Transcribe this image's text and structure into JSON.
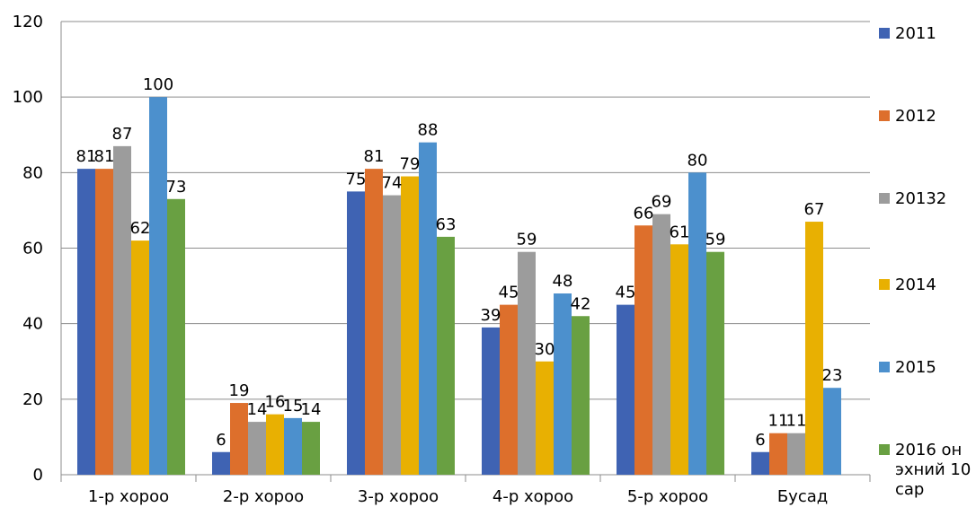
{
  "chart_data": {
    "type": "bar",
    "title": "",
    "xlabel": "",
    "ylabel": "",
    "ylim": [
      0,
      120
    ],
    "y_ticks": [
      0,
      20,
      40,
      60,
      80,
      100,
      120
    ],
    "grid": "horizontal",
    "legend_position": "right",
    "categories": [
      "1-р хороо",
      "2-р хороо",
      "3-р хороо",
      "4-р хороо",
      "5-р хороо",
      "Бусад"
    ],
    "series": [
      {
        "name": "2011",
        "color": "#3f63b3",
        "values": [
          81,
          6,
          75,
          39,
          45,
          6
        ]
      },
      {
        "name": "2012",
        "color": "#dd6f2c",
        "values": [
          81,
          19,
          81,
          45,
          66,
          11
        ]
      },
      {
        "name": "20132",
        "color": "#9c9c9c",
        "values": [
          87,
          14,
          74,
          59,
          69,
          11
        ]
      },
      {
        "name": "2014",
        "color": "#e8b002",
        "values": [
          62,
          16,
          79,
          30,
          61,
          67
        ]
      },
      {
        "name": "2015",
        "color": "#4c90cd",
        "values": [
          100,
          15,
          88,
          48,
          80,
          23
        ]
      },
      {
        "name": "2016 он эхний 10 сар",
        "color": "#69a042",
        "values": [
          73,
          14,
          63,
          42,
          59,
          null
        ]
      }
    ]
  }
}
